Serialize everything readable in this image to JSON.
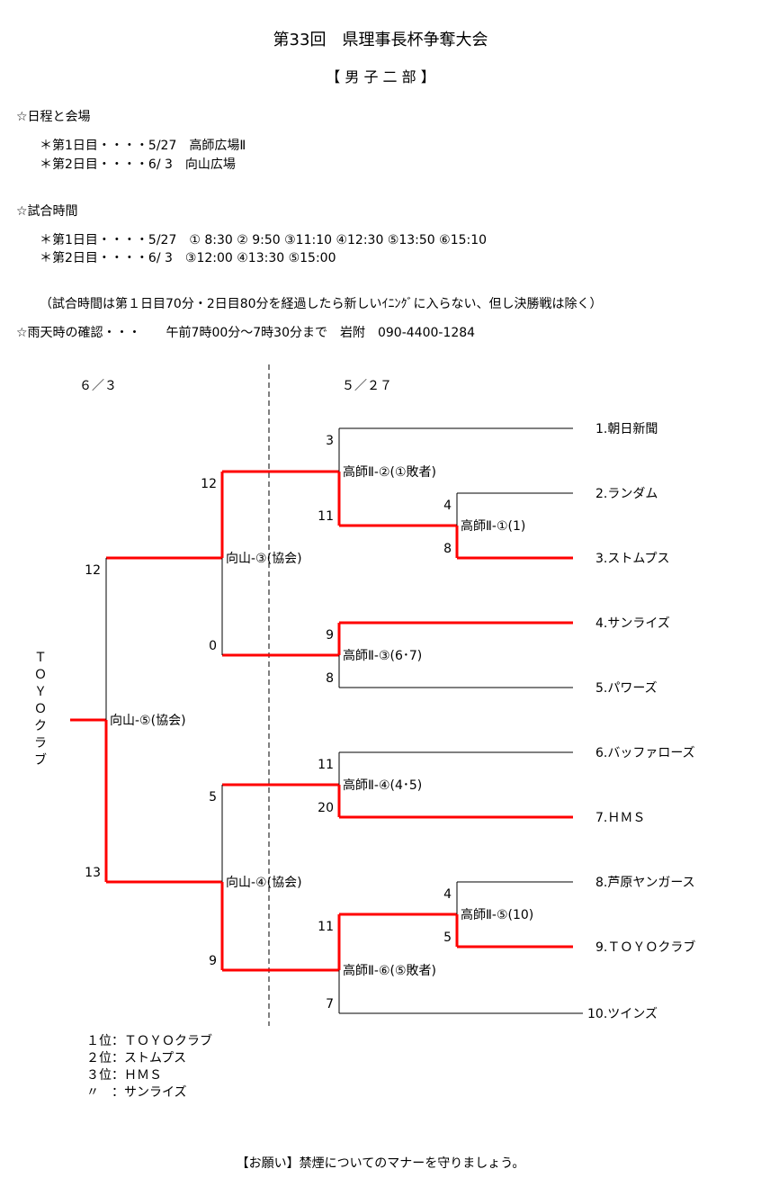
{
  "header": {
    "title": "第33回　県理事長杯争奪大会",
    "division": "【 男 子 二 部 】"
  },
  "schedule": {
    "heading": "☆日程と会場",
    "lines": [
      "＊第1日目・・・・5/27　高師広場Ⅱ",
      "＊第2日目・・・・6/ 3　向山広場"
    ]
  },
  "times": {
    "heading": "☆試合時間",
    "lines": [
      "＊第1日目・・・・5/27　① 8:30 ② 9:50 ③11:10 ④12:30 ⑤13:50 ⑥15:10",
      "＊第2日目・・・・6/ 3　③12:00 ④13:30 ⑤15:00"
    ],
    "note": "（試合時間は第１日目70分・2日目80分を経過したら新しいｲﾆﾝｸﾞに入らない、但し決勝戦は除く）"
  },
  "rain": "☆雨天時の確認・・・　　午前7時00分～7時30分まで　岩附　090-4400-1284",
  "bracket": {
    "dates": [
      "６／３",
      "５／２７"
    ],
    "teams": [
      "1.朝日新聞",
      "2.ランダム",
      "3.ストムプス",
      "4.サンライズ",
      "5.パワーズ",
      "6.バッファローズ",
      "7.ＨＭＳ",
      "8.芦原ヤンガース",
      "9.ＴＯＹＯクラブ",
      "10.ツインズ"
    ],
    "matches": [
      {
        "id": "m1",
        "label": "高師Ⅱ-①(1)",
        "scores": [
          "4",
          "8"
        ],
        "winner": "bottom"
      },
      {
        "id": "m2",
        "label": "高師Ⅱ-②(①敗者)",
        "scores": [
          "3",
          "11"
        ],
        "winner": "bottom"
      },
      {
        "id": "m3",
        "label": "高師Ⅱ-③(6･7)",
        "scores": [
          "9",
          "8"
        ],
        "winner": "top"
      },
      {
        "id": "m4",
        "label": "高師Ⅱ-④(4･5)",
        "scores": [
          "11",
          "20"
        ],
        "winner": "bottom"
      },
      {
        "id": "m5",
        "label": "高師Ⅱ-⑤(10)",
        "scores": [
          "4",
          "5"
        ],
        "winner": "bottom"
      },
      {
        "id": "m6",
        "label": "高師Ⅱ-⑥(⑤敗者)",
        "scores": [
          "11",
          "7"
        ],
        "winner": "top"
      },
      {
        "id": "sf1",
        "label": "向山-③(協会)",
        "scores": [
          "12",
          "0"
        ],
        "winner": "top"
      },
      {
        "id": "sf2",
        "label": "向山-④(協会)",
        "scores": [
          "5",
          "9"
        ],
        "winner": "bottom"
      },
      {
        "id": "final",
        "label": "向山-⑤(協会)",
        "scores": [
          "12",
          "13"
        ],
        "winner": "bottom"
      }
    ],
    "champion": "ＴＯＹＯクラブ",
    "colors": {
      "winner_line": "#ff0000",
      "line": "#000000"
    }
  },
  "standings": [
    "１位：ＴＯＹＯクラブ",
    "２位：ストムプス",
    "３位：ＨＭＳ",
    "〃　：サンライズ"
  ],
  "footer": "【お願い】禁煙についてのマナーを守りましょう。"
}
